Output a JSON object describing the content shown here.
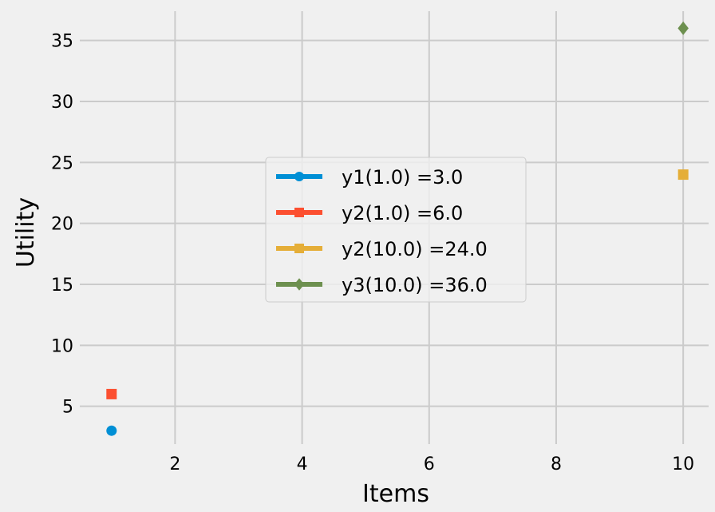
{
  "chart_data": {
    "type": "scatter",
    "title": "",
    "xlabel": "Items",
    "ylabel": "Utility",
    "xlim": [
      0.5,
      10.4
    ],
    "ylim": [
      1.9,
      37.4
    ],
    "xticks": [
      2,
      4,
      6,
      8,
      10
    ],
    "yticks": [
      5,
      10,
      15,
      20,
      25,
      30,
      35
    ],
    "grid": true,
    "legend_position": "center",
    "series": [
      {
        "name": "y1(1.0) =3.0",
        "marker": "circle",
        "color": "#008fd5",
        "points": [
          {
            "x": 1,
            "y": 3
          }
        ]
      },
      {
        "name": "y2(1.0) =6.0",
        "marker": "square",
        "color": "#fc4f30",
        "points": [
          {
            "x": 1,
            "y": 6
          }
        ]
      },
      {
        "name": "y2(10.0) =24.0",
        "marker": "square",
        "color": "#e5ae38",
        "points": [
          {
            "x": 10,
            "y": 24
          }
        ]
      },
      {
        "name": "y3(10.0) =36.0",
        "marker": "diamond",
        "color": "#6d904f",
        "points": [
          {
            "x": 10,
            "y": 36
          }
        ]
      }
    ]
  }
}
